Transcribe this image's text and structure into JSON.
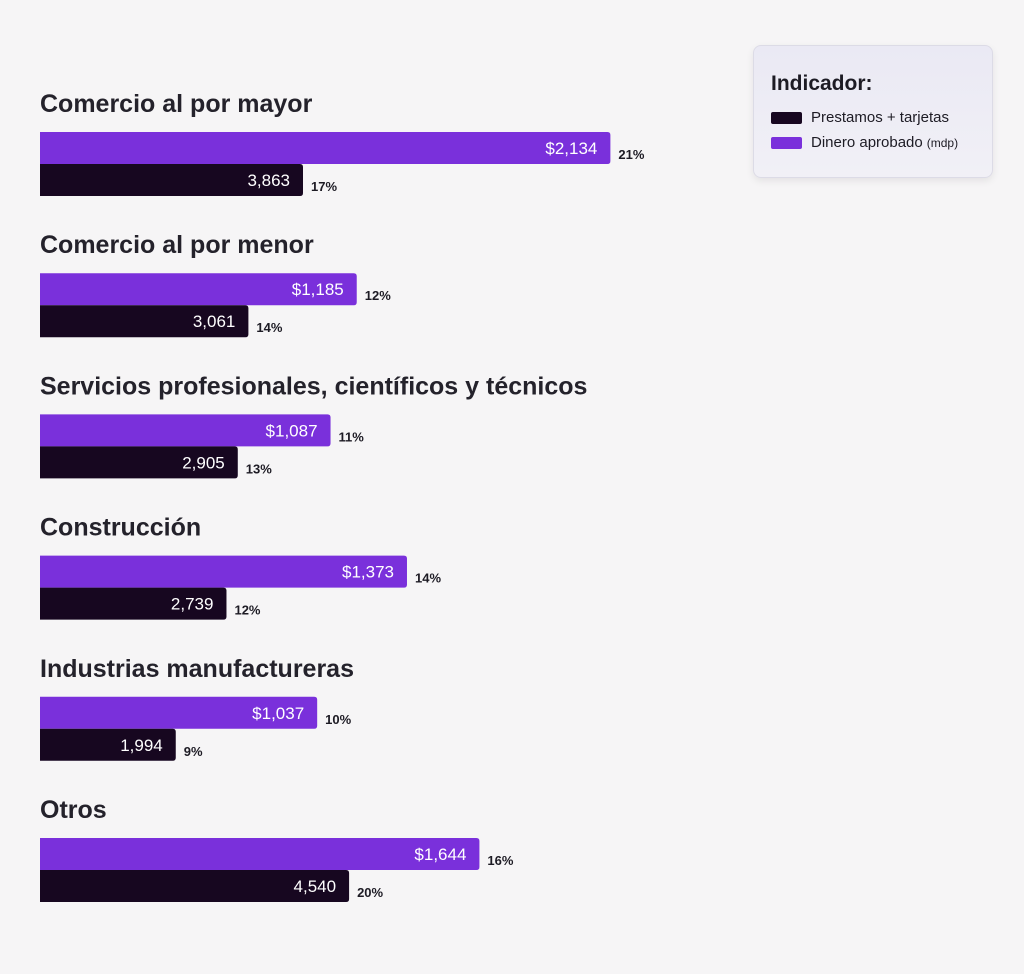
{
  "chart_data": {
    "type": "bar",
    "orientation": "horizontal",
    "categories": [
      "Comercio al por mayor",
      "Comercio al por menor",
      "Servicios profesionales, científicos y técnicos",
      "Construcción",
      "Industrias manufactureras",
      "Otros"
    ],
    "series": [
      {
        "name": "Dinero aprobado (mdp)",
        "color": "#7a30db",
        "values": [
          2134,
          1185,
          1087,
          1373,
          1037,
          1644
        ],
        "labels": [
          "$2,134",
          "$1,185",
          "$1,087",
          "$1,373",
          "$1,037",
          "$1,644"
        ],
        "percent_labels": [
          "21%",
          "12%",
          "11%",
          "14%",
          "10%",
          "16%"
        ]
      },
      {
        "name": "Prestamos + tarjetas",
        "color": "#170720",
        "values": [
          3863,
          3061,
          2905,
          2739,
          1994,
          4540
        ],
        "labels": [
          "3,863",
          "3,061",
          "2,905",
          "2,739",
          "1,994",
          "4,540"
        ],
        "percent_labels": [
          "17%",
          "14%",
          "13%",
          "12%",
          "9%",
          "20%"
        ]
      }
    ],
    "legend": {
      "title": "Indicador:",
      "position": "top-right",
      "entries": [
        {
          "label": "Prestamos + tarjetas",
          "color": "#170720"
        },
        {
          "label": "Dinero aprobado",
          "suffix": "(mdp)",
          "color": "#7a30db"
        }
      ]
    },
    "grid": false
  }
}
